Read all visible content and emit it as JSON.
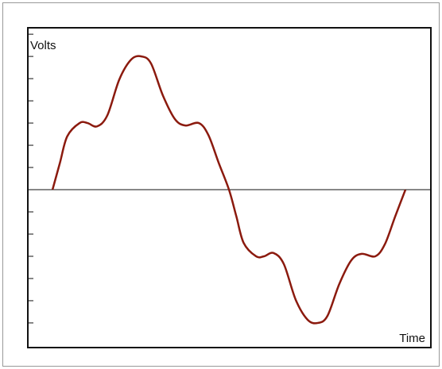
{
  "chart_data": {
    "type": "line",
    "y_label": "Volts",
    "x_label": "Time",
    "x": [
      0,
      0.5,
      1,
      1.84,
      2.38,
      3.03,
      3.73,
      4.54,
      5.35,
      6.05,
      6.7,
      7.5,
      8.32,
      9.03,
      9.95,
      10.6,
      11.3,
      12,
      12.5,
      13,
      13.84,
      14.38,
      15.03,
      15.73,
      16.54,
      17.35,
      18.05,
      18.7,
      19.5,
      20.32,
      21.03,
      21.95,
      22.6,
      23.3,
      24
    ],
    "series": [
      {
        "name": "Volts",
        "color": "#8b1a0e",
        "values": [
          0,
          1.2,
          2.4,
          3.0,
          3.0,
          2.85,
          3.35,
          4.96,
          5.86,
          6.0,
          5.68,
          4.25,
          3.18,
          2.89,
          3.0,
          2.46,
          1.21,
          0,
          -1.2,
          -2.4,
          -3.0,
          -3.0,
          -2.85,
          -3.35,
          -4.96,
          -5.86,
          -6.0,
          -5.68,
          -4.25,
          -3.18,
          -2.89,
          -3.0,
          -2.46,
          -1.21,
          0
        ]
      }
    ],
    "xlim": [
      -1.68,
      25.73
    ],
    "ylim": [
      -7.11,
      7.29
    ],
    "yticks": [
      -6,
      -5,
      -4,
      -3,
      -2,
      -1,
      0,
      1,
      2,
      3,
      4,
      5,
      6,
      7
    ],
    "zero_line": true
  }
}
